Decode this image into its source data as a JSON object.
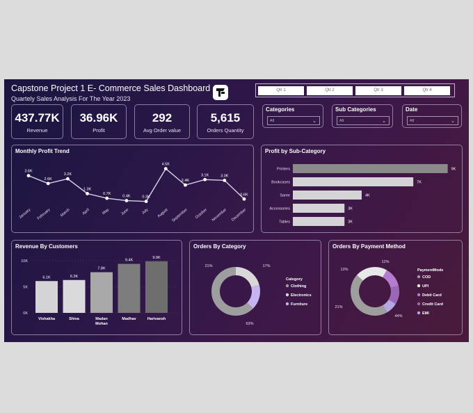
{
  "header": {
    "title": "Capstone Project 1 E- Commerce Sales Dashboard",
    "subtitle": "Quartely Sales Analysis For The Year 2023",
    "logo_icon": "powerbi-logo-icon"
  },
  "quarters": [
    "Qtr 1",
    "Qtr 2",
    "Qtr 3",
    "Qtr 4"
  ],
  "kpis": [
    {
      "value": "437.77K",
      "label": "Revenue"
    },
    {
      "value": "36.96K",
      "label": "Profit"
    },
    {
      "value": "292",
      "label": "Avg Order value"
    },
    {
      "value": "5,615",
      "label": "Orders Quantity"
    }
  ],
  "filters": [
    {
      "label": "Categories",
      "value": "All"
    },
    {
      "label": "Sub Categories",
      "value": "All"
    },
    {
      "label": "Date",
      "value": "All"
    }
  ],
  "colors": {
    "bar_light": "#d4d4d6",
    "bar_dark": "#6e6e6e",
    "accent_purple": "#b9a5e6",
    "clothing": "#9e9e9e",
    "electronics": "#d8d8d8",
    "furniture": "#c6b4f0",
    "cod": "#9e9e9e",
    "upi": "#e8e8e8",
    "debit": "#b57bd1",
    "credit": "#9a68b6",
    "emi": "#b3a8e3"
  },
  "chart_data": [
    {
      "type": "line",
      "title": "Monthly Profit Trend",
      "categories": [
        "January",
        "February",
        "March",
        "April",
        "May",
        "June",
        "July",
        "August",
        "September",
        "October",
        "November",
        "December"
      ],
      "values": [
        3.6,
        2.6,
        3.2,
        1.3,
        0.7,
        0.4,
        0.3,
        4.5,
        2.4,
        3.1,
        3.0,
        0.6
      ],
      "labels": [
        "3.6K",
        "2.6K",
        "3.2K",
        "1.3K",
        "0.7K",
        "0.4K",
        "0.3K",
        "4.5K",
        "2.4K",
        "3.1K",
        "3.0K",
        "0.6K"
      ],
      "ylim": [
        0,
        5
      ]
    },
    {
      "type": "bar",
      "orientation": "horizontal",
      "title": "Profit by Sub-Category",
      "categories": [
        "Printers",
        "Bookcases",
        "Saree",
        "Accessories",
        "Tables"
      ],
      "values": [
        9,
        7,
        4,
        3,
        3
      ],
      "labels": [
        "9K",
        "7K",
        "4K",
        "3K",
        "3K"
      ],
      "xlim": [
        0,
        9.5
      ]
    },
    {
      "type": "bar",
      "title": "Revenue By Customers",
      "categories": [
        "Vishakha",
        "Shiva",
        "Madan Mohan",
        "Madhav",
        "Harivansh"
      ],
      "values": [
        6.1,
        6.3,
        7.8,
        9.4,
        9.9
      ],
      "labels": [
        "6.1K",
        "6.3K",
        "7.8K",
        "9.4K",
        "9.9K"
      ],
      "yticks": [
        "0K",
        "5K",
        "10K"
      ],
      "ylim": [
        0,
        10
      ]
    },
    {
      "type": "pie",
      "donut": true,
      "title": "Orders By Category",
      "legend_title": "Category",
      "legend_position": "right",
      "categories": [
        "Clothing",
        "Electronics",
        "Furniture"
      ],
      "values": [
        63,
        21,
        17
      ],
      "labels": [
        "63%",
        "21%",
        "17%"
      ]
    },
    {
      "type": "pie",
      "donut": true,
      "title": "Orders By Payment Method",
      "legend_title": "PaymentMode",
      "legend_position": "right",
      "categories": [
        "COD",
        "UPI",
        "Debit Card",
        "Credit Card",
        "EMI"
      ],
      "values": [
        44,
        21,
        13,
        12,
        8
      ],
      "labels": [
        "44%",
        "21%",
        "13%",
        "12%",
        ""
      ]
    }
  ]
}
